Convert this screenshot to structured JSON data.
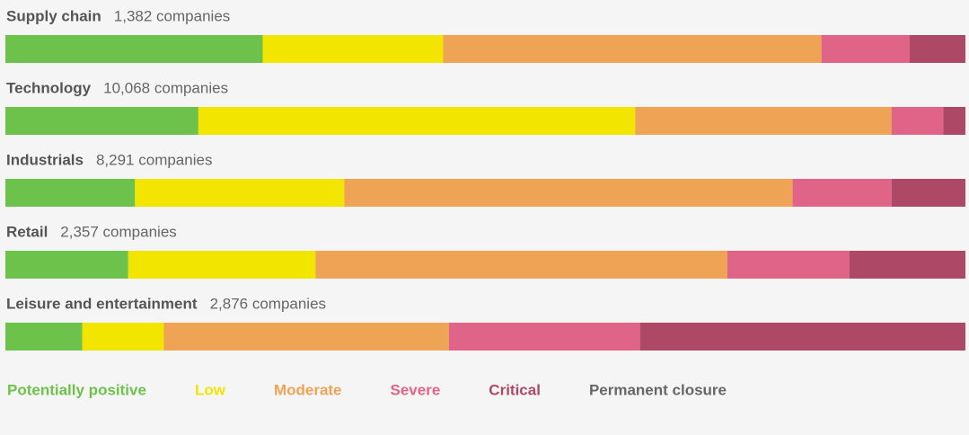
{
  "chart_data": {
    "type": "stacked-bar-horizontal",
    "categories": [
      "Supply chain",
      "Technology",
      "Industrials",
      "Retail",
      "Leisure and entertainment"
    ],
    "counts": [
      "1,382 companies",
      "10,068 companies",
      "8,291 companies",
      "2,357 companies",
      "2,876 companies"
    ],
    "xlim": [
      0,
      100
    ],
    "series": [
      {
        "name": "Potentially positive",
        "color": "#6cc24a",
        "values": [
          26.8,
          20.1,
          13.5,
          12.8,
          8.0
        ]
      },
      {
        "name": "Low",
        "color": "#f2e500",
        "values": [
          18.8,
          45.5,
          21.8,
          19.5,
          8.5
        ]
      },
      {
        "name": "Moderate",
        "color": "#eea355",
        "values": [
          39.4,
          26.7,
          46.7,
          42.9,
          29.7
        ]
      },
      {
        "name": "Severe",
        "color": "#e06487",
        "values": [
          9.2,
          5.4,
          10.3,
          12.7,
          19.9
        ]
      },
      {
        "name": "Critical",
        "color": "#ad4966",
        "values": [
          5.8,
          2.3,
          7.7,
          12.1,
          33.9
        ]
      },
      {
        "name": "Permanent closure",
        "color": "#666666",
        "values": [
          0,
          0,
          0,
          0,
          0
        ]
      }
    ]
  }
}
